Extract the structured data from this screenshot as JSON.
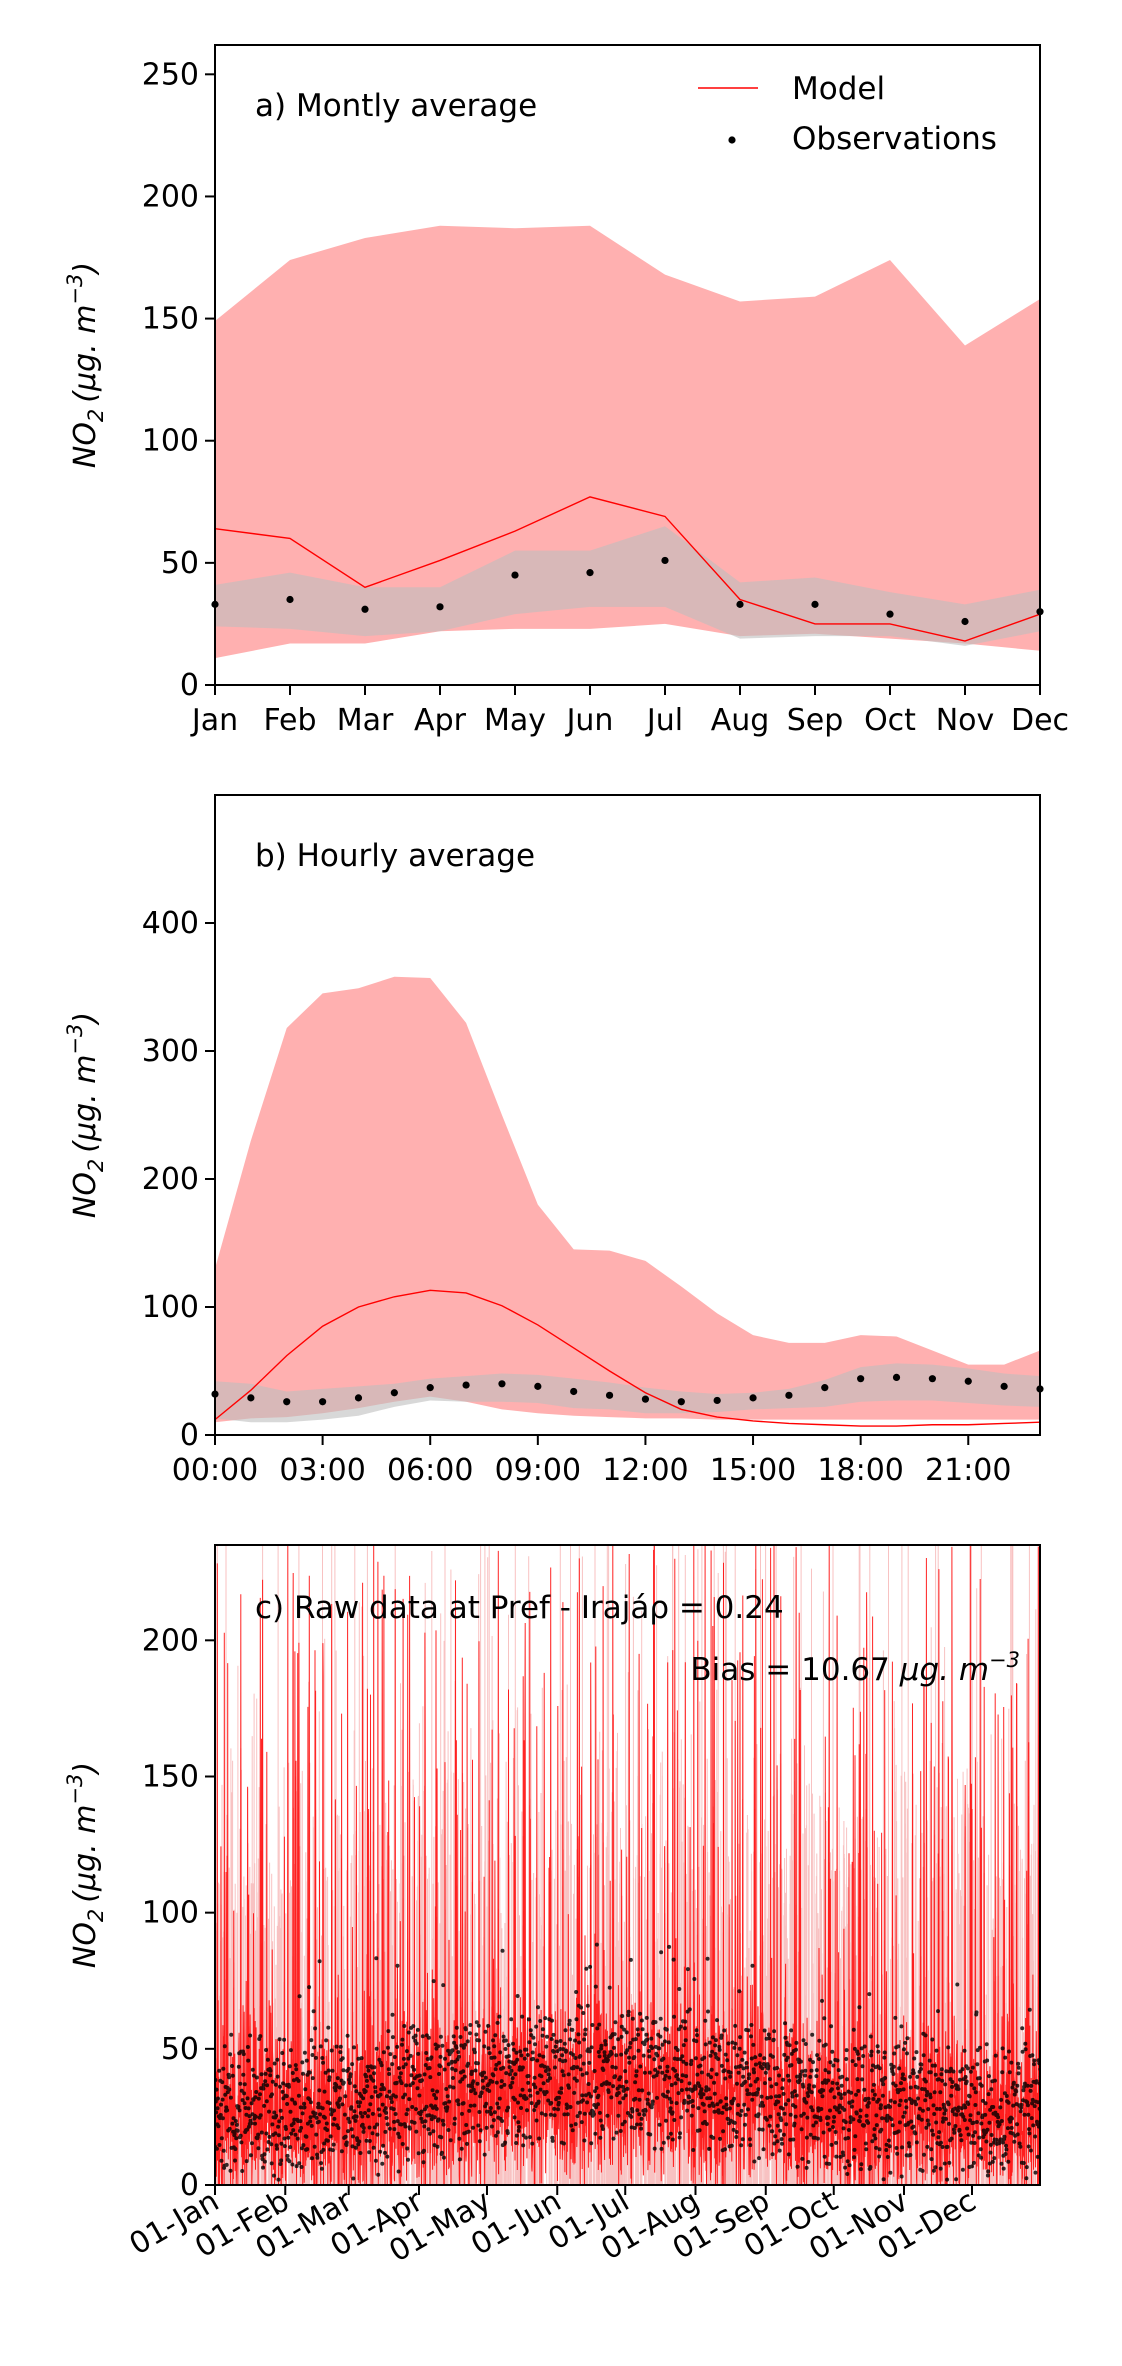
{
  "colors": {
    "model": "#ff0000",
    "model_band": "#ffb0b0",
    "obs": "#000000",
    "obs_band": "#bebebe",
    "raw_model_light": "#f8c2c2"
  },
  "chart_data": [
    {
      "type": "line",
      "annotation": "a) Montly average",
      "ylabel_base": "NO",
      "ylabel_sub": "2",
      "ylabel_unit": "(μg. m",
      "ylabel_exp": "−3",
      "ylabel_close": ")",
      "ylim": [
        0,
        262
      ],
      "yticks": [
        0,
        50,
        100,
        150,
        200,
        250
      ],
      "categories": [
        "Jan",
        "Feb",
        "Mar",
        "Apr",
        "May",
        "Jun",
        "Jul",
        "Aug",
        "Sep",
        "Oct",
        "Nov",
        "Dec"
      ],
      "x_positions": [
        1,
        2,
        3,
        4,
        5,
        6,
        7,
        8,
        9,
        10,
        11,
        12
      ],
      "xlim": [
        1,
        12
      ],
      "legend": {
        "position": "top-right",
        "model_label": "Model",
        "obs_label": "Observations"
      },
      "series": [
        {
          "name": "Model",
          "kind": "line",
          "values": [
            64,
            60,
            40,
            51,
            63,
            77,
            69,
            35,
            25,
            25,
            18,
            29
          ]
        },
        {
          "name": "Observations",
          "kind": "points",
          "values": [
            33,
            35,
            31,
            32,
            45,
            46,
            51,
            33,
            33,
            29,
            26,
            30
          ]
        }
      ],
      "bands": [
        {
          "kind": "model",
          "lower": [
            11,
            17,
            17,
            22,
            23,
            23,
            25,
            20,
            21,
            19,
            17,
            14
          ],
          "upper": [
            149,
            174,
            183,
            188,
            187,
            188,
            168,
            157,
            159,
            174,
            139,
            158
          ]
        },
        {
          "kind": "obs",
          "lower": [
            24,
            23,
            20,
            22,
            29,
            32,
            32,
            19,
            20,
            20,
            16,
            22
          ],
          "upper": [
            41,
            46,
            40,
            40,
            55,
            55,
            65,
            42,
            44,
            38,
            33,
            39
          ]
        }
      ]
    },
    {
      "type": "line",
      "annotation": "b) Hourly average",
      "ylabel_base": "NO",
      "ylabel_sub": "2",
      "ylabel_unit": "(μg. m",
      "ylabel_exp": "−3",
      "ylabel_close": ")",
      "ylim": [
        0,
        500
      ],
      "yticks": [
        0,
        100,
        200,
        300,
        400
      ],
      "x": [
        0,
        1,
        2,
        3,
        4,
        5,
        6,
        7,
        8,
        9,
        10,
        11,
        12,
        13,
        14,
        15,
        16,
        17,
        18,
        19,
        20,
        21,
        22,
        23
      ],
      "xlim": [
        0,
        23
      ],
      "xtick_values": [
        0,
        3,
        6,
        9,
        12,
        15,
        18,
        21
      ],
      "xtick_labels": [
        "00:00",
        "03:00",
        "06:00",
        "09:00",
        "12:00",
        "15:00",
        "18:00",
        "21:00"
      ],
      "series": [
        {
          "name": "Model",
          "kind": "line",
          "values": [
            12,
            35,
            62,
            85,
            100,
            108,
            113,
            111,
            101,
            86,
            68,
            50,
            33,
            20,
            14,
            11,
            9,
            8,
            7,
            7,
            8,
            8,
            9,
            10
          ]
        },
        {
          "name": "Observations",
          "kind": "points",
          "values": [
            32,
            29,
            26,
            26,
            29,
            33,
            37,
            39,
            40,
            38,
            34,
            31,
            28,
            26,
            27,
            29,
            31,
            37,
            44,
            45,
            44,
            42,
            38,
            36
          ]
        }
      ],
      "bands": [
        {
          "kind": "model",
          "lower": [
            10,
            13,
            14,
            17,
            21,
            26,
            30,
            26,
            20,
            17,
            15,
            14,
            13,
            13,
            12,
            12,
            12,
            12,
            12,
            12,
            12,
            12,
            12,
            12
          ],
          "upper": [
            130,
            230,
            318,
            345,
            349,
            358,
            357,
            322,
            250,
            180,
            145,
            144,
            136,
            116,
            95,
            78,
            72,
            72,
            78,
            77,
            66,
            55,
            55,
            66
          ]
        },
        {
          "kind": "obs",
          "lower": [
            13,
            10,
            10,
            12,
            15,
            22,
            27,
            26,
            26,
            25,
            21,
            20,
            17,
            17,
            18,
            20,
            21,
            22,
            26,
            27,
            27,
            25,
            23,
            22
          ]
        },
        {
          "kind": "obs_upper",
          "upper": [
            42,
            40,
            34,
            36,
            38,
            40,
            44,
            46,
            48,
            47,
            44,
            41,
            37,
            34,
            32,
            33,
            36,
            43,
            53,
            56,
            55,
            52,
            48,
            46
          ]
        }
      ]
    },
    {
      "type": "line",
      "annotation": "c) Raw data at Pref - Irajáρ = 0.24",
      "bias_prefix": "Bias = 10.67 ",
      "bias_unit": "μg. m",
      "bias_exp": "−3",
      "ylabel_base": "NO",
      "ylabel_sub": "2",
      "ylabel_unit": "(μg. m",
      "ylabel_exp": "−3",
      "ylabel_close": ")",
      "ylim": [
        0,
        235
      ],
      "yticks": [
        0,
        50,
        100,
        150,
        200
      ],
      "xlim": [
        1,
        365
      ],
      "xtick_days": [
        1,
        32,
        60,
        91,
        121,
        152,
        182,
        213,
        244,
        274,
        305,
        335
      ],
      "xtick_labels": [
        "01-Jan",
        "01-Feb",
        "01-Mar",
        "01-Apr",
        "01-May",
        "01-Jun",
        "01-Jul",
        "01-Aug",
        "01-Sep",
        "01-Oct",
        "01-Nov",
        "01-Dec"
      ],
      "series": [
        {
          "name": "Model",
          "kind": "hourly-line"
        },
        {
          "name": "Observations",
          "kind": "hourly-points"
        }
      ]
    }
  ]
}
